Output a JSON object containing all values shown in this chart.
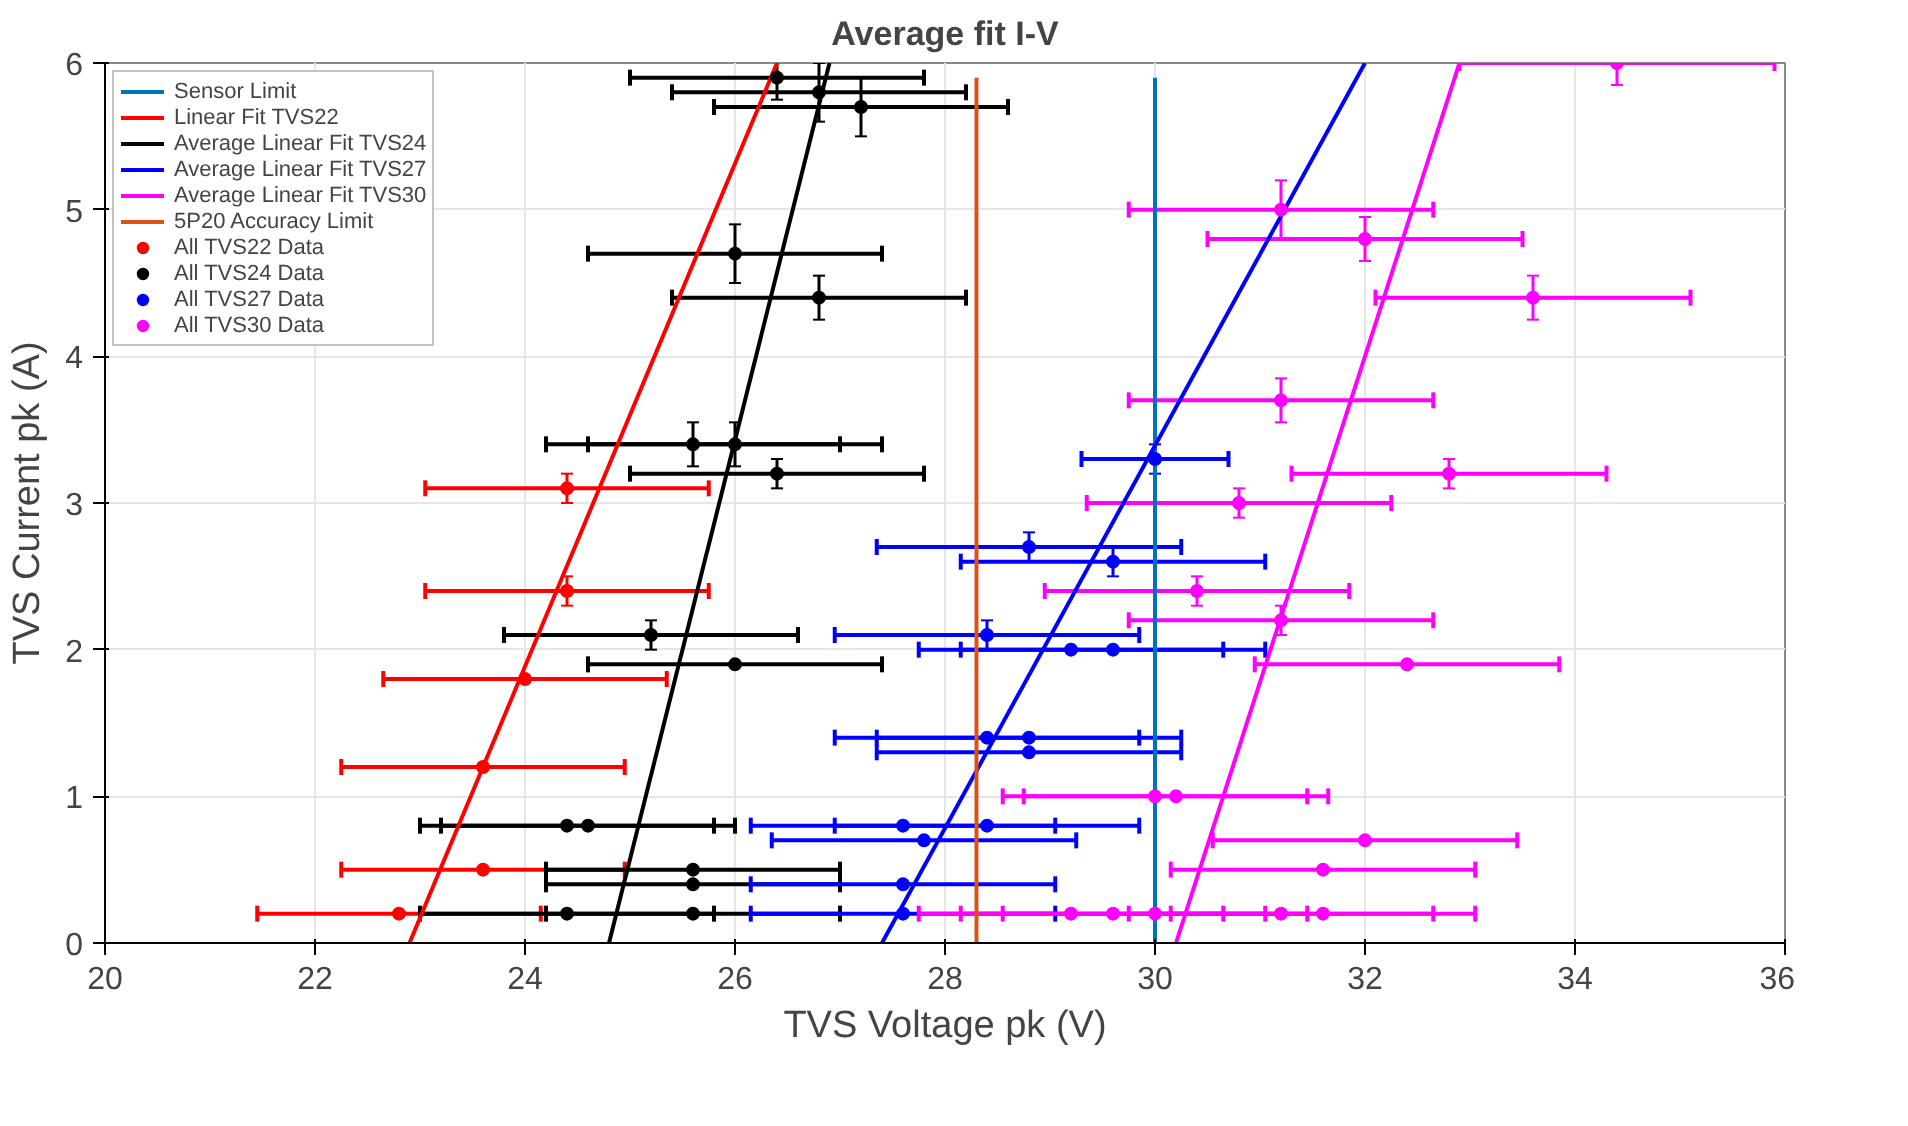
{
  "chart_data": {
    "type": "scatter",
    "title": "Average fit I-V",
    "xlabel": "TVS Voltage pk (V)",
    "ylabel": "TVS Current pk (A)",
    "xlim": [
      20,
      36
    ],
    "xticks": [
      20,
      22,
      24,
      26,
      28,
      30,
      32,
      34,
      36
    ],
    "ylim": [
      0,
      6
    ],
    "yticks": [
      0,
      1,
      2,
      3,
      4,
      5,
      6
    ],
    "grid": true,
    "legend": "top left",
    "series": [
      {
        "name": "Sensor Limit",
        "type": "line",
        "color": "#0072bd",
        "x": [
          30.0,
          30.0
        ],
        "values": [
          0,
          5.9
        ]
      },
      {
        "name": "Linear Fit TVS22",
        "type": "line",
        "color": "#ff0000",
        "x": [
          22.9,
          26.4
        ],
        "values": [
          0,
          6
        ]
      },
      {
        "name": "Average Linear Fit TVS24",
        "type": "line",
        "color": "#000000",
        "x": [
          24.8,
          26.9
        ],
        "values": [
          0,
          6
        ]
      },
      {
        "name": "Average Linear Fit TVS27",
        "type": "line",
        "color": "#0000ff",
        "x": [
          27.4,
          32.0
        ],
        "values": [
          0,
          6
        ]
      },
      {
        "name": "Average Linear Fit TVS30",
        "type": "line",
        "color": "#ff00ff",
        "x": [
          30.2,
          32.9
        ],
        "values": [
          0,
          6
        ]
      },
      {
        "name": "5P20 Accuracy Limit",
        "type": "line",
        "color": "#d95319",
        "x": [
          28.3,
          28.3
        ],
        "values": [
          0,
          5.9
        ]
      },
      {
        "name": "All TVS22 Data",
        "marker": "circle",
        "color": "#ff0000",
        "x": [
          24.4,
          24.4,
          24.0,
          23.6,
          23.6,
          22.8
        ],
        "values": [
          3.1,
          2.4,
          1.8,
          1.2,
          0.5,
          0.2
        ],
        "errors": [
          0.1,
          0.1,
          null,
          null,
          null,
          null
        ],
        "xerrors": [
          1.35,
          1.35,
          1.35,
          1.35,
          1.35,
          1.35
        ]
      },
      {
        "name": "All TVS24 Data",
        "marker": "circle",
        "color": "#000000",
        "x": [
          26.4,
          26.8,
          27.2,
          26.0,
          26.8,
          25.6,
          26.0,
          26.4,
          25.2,
          26.0,
          24.4,
          24.6,
          25.6,
          25.6,
          24.4,
          25.6
        ],
        "values": [
          5.9,
          5.8,
          5.7,
          4.7,
          4.4,
          3.4,
          3.4,
          3.2,
          2.1,
          1.9,
          0.8,
          0.8,
          0.5,
          0.4,
          0.2,
          0.2
        ],
        "errors": [
          0.15,
          0.2,
          0.2,
          0.2,
          0.15,
          0.15,
          0.15,
          0.1,
          0.1,
          null,
          null,
          null,
          null,
          null,
          null,
          null
        ],
        "xerrors": [
          1.4,
          1.4,
          1.4,
          1.4,
          1.4,
          1.4,
          1.4,
          1.4,
          1.4,
          1.4,
          1.4,
          1.4,
          1.4,
          1.4,
          1.4,
          1.4
        ]
      },
      {
        "name": "All TVS27 Data",
        "marker": "circle",
        "color": "#0000ff",
        "x": [
          30.0,
          28.8,
          29.6,
          28.4,
          29.2,
          29.6,
          28.4,
          28.8,
          28.8,
          27.6,
          28.4,
          27.8,
          27.6,
          27.6
        ],
        "values": [
          3.3,
          2.7,
          2.6,
          2.1,
          2.0,
          2.0,
          1.4,
          1.4,
          1.3,
          0.8,
          0.8,
          0.7,
          0.4,
          0.2
        ],
        "errors": [
          0.1,
          0.1,
          0.1,
          0.1,
          null,
          null,
          null,
          null,
          null,
          null,
          null,
          null,
          null,
          null
        ],
        "xerrors": [
          0.7,
          1.45,
          1.45,
          1.45,
          1.45,
          1.45,
          1.45,
          1.45,
          1.45,
          1.45,
          1.45,
          1.45,
          1.45,
          1.45
        ]
      },
      {
        "name": "All TVS30 Data",
        "marker": "circle",
        "color": "#ff00ff",
        "x": [
          34.4,
          31.2,
          32.0,
          33.6,
          31.2,
          32.8,
          30.8,
          30.4,
          31.2,
          32.4,
          30.0,
          30.2,
          32.0,
          31.6,
          29.2,
          29.6,
          30.0,
          31.2,
          31.6
        ],
        "values": [
          6.0,
          5.0,
          4.8,
          4.4,
          3.7,
          3.2,
          3.0,
          2.4,
          2.2,
          1.9,
          1.0,
          1.0,
          0.7,
          0.5,
          0.2,
          0.2,
          0.2,
          0.2,
          0.2
        ],
        "errors": [
          0.15,
          0.2,
          0.15,
          0.15,
          0.15,
          0.1,
          0.1,
          0.1,
          0.1,
          null,
          null,
          null,
          null,
          null,
          null,
          null,
          null,
          null,
          null
        ],
        "xerrors": [
          1.5,
          1.45,
          1.5,
          1.5,
          1.45,
          1.5,
          1.45,
          1.45,
          1.45,
          1.45,
          1.45,
          1.45,
          1.45,
          1.45,
          1.45,
          1.45,
          1.45,
          1.45,
          1.45
        ]
      }
    ]
  }
}
